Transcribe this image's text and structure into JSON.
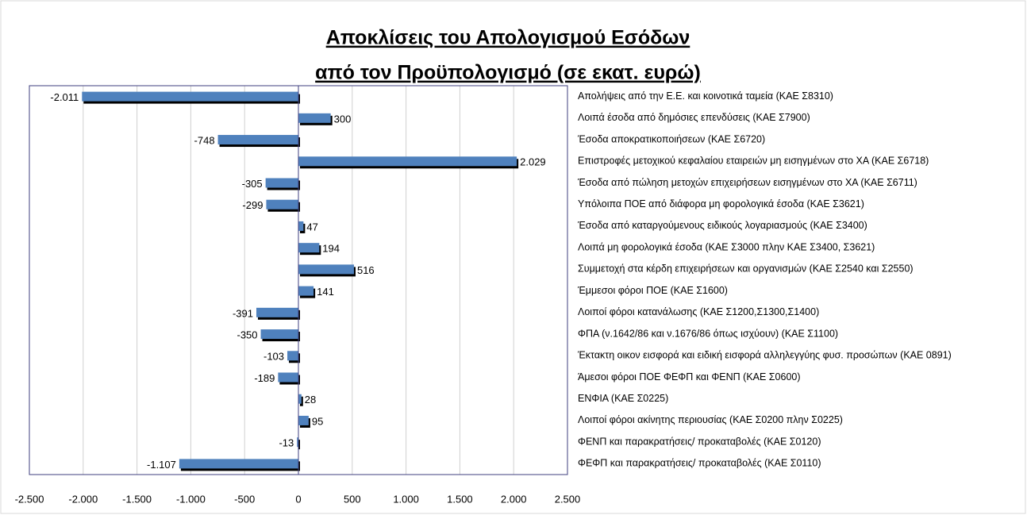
{
  "chart_data": {
    "type": "bar",
    "orientation": "horizontal",
    "title": [
      "Αποκλίσεις του Απολογισμού Εσόδων",
      "από τον Προϋπολογισμό (σε εκατ. ευρώ)"
    ],
    "categories": [
      "Απολήψεις από την Ε.Ε. και  κοινοτικά ταμεία (ΚΑΕ Σ8310)",
      "Λοιπά έσοδα από δημόσιες επενδύσεις (ΚΑΕ Σ7900)",
      "Έσοδα αποκρατικοποιήσεων (ΚΑΕ Σ6720)",
      "Επιστροφές μετοχικού κεφαλαίου εταιρειών μη εισηγμένων στο ΧΑ (ΚΑΕ Σ6718)",
      "Έσοδα από πώληση μετοχών επιχειρήσεων εισηγμένων στο ΧΑ (ΚΑΕ Σ6711)",
      "Υπόλοιπα ΠΟΕ από διάφορα μη φορολογικά έσοδα (ΚΑΕ Σ3621)",
      "Έσοδα από καταργούμενους ειδικούς λογαριασμούς (ΚΑΕ Σ3400)",
      "Λοιπά μη φορολογικά έσοδα (ΚΑΕ Σ3000 πλην ΚΑΕ Σ3400, Σ3621)",
      "Συμμετοχή  στα κέρδη επιχειρήσεων και οργανισμών (ΚΑΕ Σ2540 και Σ2550)",
      "Έμμεσοι φόροι ΠΟΕ (ΚΑΕ Σ1600)",
      "Λοιποί φόροι κατανάλωσης (ΚΑΕ Σ1200,Σ1300,Σ1400)",
      "ΦΠΑ (ν.1642/86 και ν.1676/86 όπως ισχύουν) (ΚΑΕ Σ1100)",
      "Έκτακτη οικον εισφορά και ειδική εισφορά αλληλεγγύης φυσ. προσώπων (ΚΑΕ 0891)",
      "Άμεσοι φόροι ΠΟΕ ΦΕΦΠ και ΦΕΝΠ (ΚΑΕ Σ0600)",
      "ΕΝΦΙΑ (ΚΑΕ Σ0225)",
      "Λοιποί φόροι ακίνητης περιουσίας (ΚΑΕ Σ0200 πλην Σ0225)",
      "ΦΕΝΠ και παρακρατήσεις/ προκαταβολές (ΚΑΕ Σ0120)",
      "ΦΕΦΠ και παρακρατήσεις/ προκαταβολές (ΚΑΕ Σ0110)"
    ],
    "values": [
      -2011,
      300,
      -748,
      2029,
      -305,
      -299,
      47,
      194,
      516,
      141,
      -391,
      -350,
      -103,
      -189,
      28,
      95,
      -13,
      -1107
    ],
    "value_labels": [
      "-2.011",
      "300",
      "-748",
      "2.029",
      "-305",
      "-299",
      "47",
      "194",
      "516",
      "141",
      "-391",
      "-350",
      "-103",
      "-189",
      "28",
      "95",
      "-13",
      "-1.107"
    ],
    "color": "#4f81bd",
    "xlim": [
      -2500,
      2500
    ],
    "xticks": [
      {
        "value": -2500,
        "label": "-2.500"
      },
      {
        "value": -2000,
        "label": "-2.000"
      },
      {
        "value": -1500,
        "label": "-1.500"
      },
      {
        "value": -1000,
        "label": "-1.000"
      },
      -500,
      0,
      500,
      {
        "value": 1000,
        "label": "1.000"
      },
      {
        "value": 1500,
        "label": "1.500"
      },
      {
        "value": 2000,
        "label": "2.000"
      },
      {
        "value": 2500,
        "label": "2.500"
      }
    ],
    "grid": true
  }
}
